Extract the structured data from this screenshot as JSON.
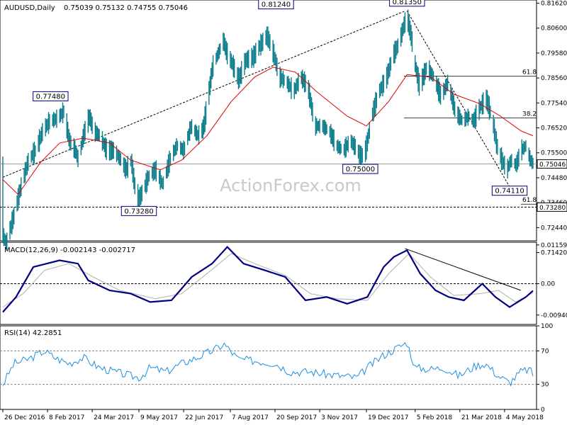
{
  "chart_data": [
    {
      "type": "candlestick",
      "title": "AUDUSD,Daily",
      "ohlc_readout": "0.75039 0.75132 0.74755 0.75046",
      "last_price": 0.75046,
      "last_price_label": "0.75046",
      "ylim": [
        0.719,
        0.8175
      ],
      "y_ticks": [
        {
          "value": 0.8162,
          "label": "0.81620"
        },
        {
          "value": 0.806,
          "label": "0.80600"
        },
        {
          "value": 0.7958,
          "label": "0.79580"
        },
        {
          "value": 0.7856,
          "label": "0.78560"
        },
        {
          "value": 0.7754,
          "label": "0.77540"
        },
        {
          "value": 0.7652,
          "label": "0.76520"
        },
        {
          "value": 0.755,
          "label": "0.75500"
        },
        {
          "value": 0.7448,
          "label": "0.74480"
        },
        {
          "value": 0.7346,
          "label": "0.73460"
        },
        {
          "value": 0.7244,
          "label": "0.72440"
        },
        {
          "value": 0.7142,
          "label": "0.71420"
        }
      ],
      "price_path": [
        [
          "2016-12-26",
          0.721
        ],
        [
          "2016-12-29",
          0.718
        ],
        [
          "2017-01-06",
          0.73
        ],
        [
          "2017-01-13",
          0.742
        ],
        [
          "2017-01-20",
          0.752
        ],
        [
          "2017-01-27",
          0.756
        ],
        [
          "2017-02-03",
          0.764
        ],
        [
          "2017-02-10",
          0.768
        ],
        [
          "2017-02-17",
          0.769
        ],
        [
          "2017-02-24",
          0.772
        ],
        [
          "2017-03-01",
          0.76
        ],
        [
          "2017-03-07",
          0.756
        ],
        [
          "2017-03-10",
          0.752
        ],
        [
          "2017-03-15",
          0.762
        ],
        [
          "2017-03-21",
          0.77
        ],
        [
          "2017-03-25",
          0.764
        ],
        [
          "2017-03-31",
          0.762
        ],
        [
          "2017-04-07",
          0.756
        ],
        [
          "2017-04-14",
          0.756
        ],
        [
          "2017-04-21",
          0.752
        ],
        [
          "2017-04-26",
          0.748
        ],
        [
          "2017-05-01",
          0.752
        ],
        [
          "2017-05-05",
          0.74
        ],
        [
          "2017-05-09",
          0.736
        ],
        [
          "2017-05-13",
          0.74
        ],
        [
          "2017-05-19",
          0.746
        ],
        [
          "2017-05-25",
          0.748
        ],
        [
          "2017-06-01",
          0.742
        ],
        [
          "2017-06-08",
          0.752
        ],
        [
          "2017-06-15",
          0.758
        ],
        [
          "2017-06-22",
          0.756
        ],
        [
          "2017-06-29",
          0.766
        ],
        [
          "2017-07-06",
          0.762
        ],
        [
          "2017-07-11",
          0.765
        ],
        [
          "2017-07-15",
          0.775
        ],
        [
          "2017-07-20",
          0.79
        ],
        [
          "2017-07-25",
          0.795
        ],
        [
          "2017-07-31",
          0.801
        ],
        [
          "2017-08-03",
          0.796
        ],
        [
          "2017-08-08",
          0.792
        ],
        [
          "2017-08-15",
          0.785
        ],
        [
          "2017-08-22",
          0.793
        ],
        [
          "2017-08-29",
          0.794
        ],
        [
          "2017-09-05",
          0.799
        ],
        [
          "2017-09-12",
          0.803
        ],
        [
          "2017-09-18",
          0.796
        ],
        [
          "2017-09-24",
          0.786
        ],
        [
          "2017-10-01",
          0.784
        ],
        [
          "2017-10-08",
          0.78
        ],
        [
          "2017-10-15",
          0.786
        ],
        [
          "2017-10-22",
          0.782
        ],
        [
          "2017-10-29",
          0.766
        ],
        [
          "2017-11-05",
          0.766
        ],
        [
          "2017-11-12",
          0.764
        ],
        [
          "2017-11-19",
          0.758
        ],
        [
          "2017-11-26",
          0.756
        ],
        [
          "2017-12-03",
          0.76
        ],
        [
          "2017-12-10",
          0.756
        ],
        [
          "2017-12-13",
          0.753
        ],
        [
          "2017-12-18",
          0.756
        ],
        [
          "2017-12-24",
          0.77
        ],
        [
          "2017-12-31",
          0.78
        ],
        [
          "2018-01-07",
          0.785
        ],
        [
          "2018-01-14",
          0.795
        ],
        [
          "2018-01-20",
          0.8
        ],
        [
          "2018-01-25",
          0.808
        ],
        [
          "2018-01-28",
          0.81
        ],
        [
          "2018-02-01",
          0.802
        ],
        [
          "2018-02-05",
          0.79
        ],
        [
          "2018-02-09",
          0.782
        ],
        [
          "2018-02-16",
          0.79
        ],
        [
          "2018-02-23",
          0.786
        ],
        [
          "2018-03-02",
          0.778
        ],
        [
          "2018-03-09",
          0.784
        ],
        [
          "2018-03-16",
          0.772
        ],
        [
          "2018-03-23",
          0.768
        ],
        [
          "2018-03-30",
          0.77
        ],
        [
          "2018-04-03",
          0.768
        ],
        [
          "2018-04-10",
          0.774
        ],
        [
          "2018-04-16",
          0.777
        ],
        [
          "2018-04-22",
          0.768
        ],
        [
          "2018-04-26",
          0.758
        ],
        [
          "2018-05-01",
          0.752
        ],
        [
          "2018-05-06",
          0.748
        ],
        [
          "2018-05-10",
          0.752
        ],
        [
          "2018-05-15",
          0.75
        ],
        [
          "2018-05-20",
          0.756
        ],
        [
          "2018-05-25",
          0.758
        ],
        [
          "2018-05-29",
          0.752
        ],
        [
          "2018-06-01",
          0.7505
        ]
      ],
      "moving_average": [
        [
          "2016-12-26",
          0.744
        ],
        [
          "2017-01-10",
          0.738
        ],
        [
          "2017-02-01",
          0.751
        ],
        [
          "2017-02-20",
          0.759
        ],
        [
          "2017-03-15",
          0.761
        ],
        [
          "2017-04-10",
          0.759
        ],
        [
          "2017-05-01",
          0.752
        ],
        [
          "2017-05-30",
          0.748
        ],
        [
          "2017-06-20",
          0.752
        ],
        [
          "2017-07-15",
          0.762
        ],
        [
          "2017-08-08",
          0.776
        ],
        [
          "2017-08-31",
          0.786
        ],
        [
          "2017-09-18",
          0.79
        ],
        [
          "2017-10-10",
          0.788
        ],
        [
          "2017-10-31",
          0.78
        ],
        [
          "2017-11-30",
          0.77
        ],
        [
          "2017-12-19",
          0.766
        ],
        [
          "2018-01-10",
          0.776
        ],
        [
          "2018-01-28",
          0.787
        ],
        [
          "2018-02-20",
          0.786
        ],
        [
          "2018-03-15",
          0.779
        ],
        [
          "2018-04-10",
          0.775
        ],
        [
          "2018-04-30",
          0.77
        ],
        [
          "2018-05-20",
          0.764
        ],
        [
          "2018-06-01",
          0.762
        ]
      ],
      "annotations": [
        {
          "label": "0.77480",
          "value": 0.7748,
          "date": "2017-02-11"
        },
        {
          "label": "0.73280",
          "value": 0.7328,
          "date": "2017-05-09"
        },
        {
          "label": "0.81240",
          "value": 0.8124,
          "date": "2017-09-21"
        },
        {
          "label": "0.75000",
          "value": 0.75,
          "date": "2017-12-13"
        },
        {
          "label": "0.81350",
          "value": 0.8135,
          "date": "2018-01-28"
        },
        {
          "label": "0.74110",
          "value": 0.7411,
          "date": "2018-05-09"
        }
      ],
      "horizontal_levels": [
        {
          "value": 0.7328,
          "label": "0.73280",
          "style": "dashed"
        }
      ],
      "fib_levels": [
        {
          "label": "61.8",
          "value": 0.7864,
          "from": "2018-01-25"
        },
        {
          "label": "38.2",
          "value": 0.7693,
          "from": "2018-01-25"
        },
        {
          "label": "61.8",
          "value": 0.734,
          "from": "2018-05-20"
        }
      ],
      "trendlines": [
        {
          "style": "dashed",
          "from": [
            "2016-12-26",
            0.745
          ],
          "to": [
            "2018-01-26",
            0.813
          ]
        },
        {
          "style": "dashed",
          "from": [
            "2018-01-28",
            0.813
          ],
          "to": [
            "2018-05-09",
            0.7411
          ]
        }
      ],
      "watermark": "ActionForex.com"
    },
    {
      "type": "line",
      "title": "MACD(12,26,9) -0.002143 -0.002717",
      "ylim": [
        -0.0122,
        0.0124
      ],
      "y_ticks": [
        {
          "value": 0.01159,
          "label": "0.01159"
        },
        {
          "value": 0.0,
          "label": "0.00"
        },
        {
          "value": -0.0094,
          "label": "-0.009408"
        }
      ],
      "zero_line": true,
      "series": [
        {
          "values": [
            [
              "2016-12-26",
              -0.0085
            ],
            [
              "2017-01-08",
              -0.004
            ],
            [
              "2017-01-25",
              0.005
            ],
            [
              "2017-02-20",
              0.007
            ],
            [
              "2017-03-10",
              0.006
            ],
            [
              "2017-03-20",
              0.001
            ],
            [
              "2017-04-10",
              -0.002
            ],
            [
              "2017-05-01",
              -0.003
            ],
            [
              "2017-05-20",
              -0.0055
            ],
            [
              "2017-06-10",
              -0.005
            ],
            [
              "2017-06-30",
              0.002
            ],
            [
              "2017-07-20",
              0.006
            ],
            [
              "2017-08-04",
              0.011
            ],
            [
              "2017-08-20",
              0.006
            ],
            [
              "2017-09-10",
              0.004
            ],
            [
              "2017-09-30",
              0.002
            ],
            [
              "2017-10-20",
              -0.005
            ],
            [
              "2017-11-10",
              -0.004
            ],
            [
              "2017-11-30",
              -0.006
            ],
            [
              "2017-12-20",
              -0.004
            ],
            [
              "2018-01-05",
              0.005
            ],
            [
              "2018-01-15",
              0.008
            ],
            [
              "2018-01-28",
              0.01
            ],
            [
              "2018-02-10",
              0.003
            ],
            [
              "2018-02-25",
              -0.002
            ],
            [
              "2018-03-10",
              -0.004
            ],
            [
              "2018-03-25",
              -0.005
            ],
            [
              "2018-04-12",
              0.0
            ],
            [
              "2018-04-25",
              -0.004
            ],
            [
              "2018-05-09",
              -0.007
            ],
            [
              "2018-05-25",
              -0.004
            ],
            [
              "2018-06-01",
              -0.0021
            ]
          ]
        },
        {
          "values": [
            [
              "2016-12-26",
              -0.007
            ],
            [
              "2017-01-15",
              -0.003
            ],
            [
              "2017-02-05",
              0.004
            ],
            [
              "2017-03-01",
              0.006
            ],
            [
              "2017-03-25",
              0.002
            ],
            [
              "2017-04-20",
              -0.002
            ],
            [
              "2017-05-25",
              -0.0045
            ],
            [
              "2017-06-20",
              -0.003
            ],
            [
              "2017-07-15",
              0.003
            ],
            [
              "2017-08-08",
              0.009
            ],
            [
              "2017-08-31",
              0.006
            ],
            [
              "2017-09-30",
              0.0025
            ],
            [
              "2017-10-25",
              -0.003
            ],
            [
              "2017-11-20",
              -0.0045
            ],
            [
              "2017-12-20",
              -0.005
            ],
            [
              "2018-01-10",
              0.003
            ],
            [
              "2018-01-30",
              0.009
            ],
            [
              "2018-02-20",
              0.002
            ],
            [
              "2018-03-15",
              -0.0035
            ],
            [
              "2018-04-10",
              -0.003
            ],
            [
              "2018-04-28",
              -0.002
            ],
            [
              "2018-05-15",
              -0.0055
            ],
            [
              "2018-06-01",
              -0.0027
            ]
          ]
        }
      ],
      "trendlines": [
        {
          "from": [
            "2018-01-26",
            0.0105
          ],
          "to": [
            "2018-05-20",
            -0.002
          ]
        }
      ]
    },
    {
      "type": "line",
      "title": "RSI(14) 42.2851",
      "ylim": [
        0,
        100
      ],
      "y_ticks": [
        {
          "value": 100,
          "label": "100"
        },
        {
          "value": 70,
          "label": "70"
        },
        {
          "value": 30,
          "label": "30"
        },
        {
          "value": 0,
          "label": "0"
        }
      ],
      "levels": [
        70,
        30
      ],
      "series": [
        {
          "values": [
            [
              "2016-12-26",
              30
            ],
            [
              "2017-01-06",
              55
            ],
            [
              "2017-01-20",
              60
            ],
            [
              "2017-02-05",
              70
            ],
            [
              "2017-02-15",
              62
            ],
            [
              "2017-03-01",
              55
            ],
            [
              "2017-03-15",
              62
            ],
            [
              "2017-03-31",
              50
            ],
            [
              "2017-04-15",
              45
            ],
            [
              "2017-05-01",
              40
            ],
            [
              "2017-05-10",
              38
            ],
            [
              "2017-05-20",
              50
            ],
            [
              "2017-06-05",
              45
            ],
            [
              "2017-06-20",
              55
            ],
            [
              "2017-07-05",
              62
            ],
            [
              "2017-07-20",
              70
            ],
            [
              "2017-08-01",
              78
            ],
            [
              "2017-08-15",
              60
            ],
            [
              "2017-09-01",
              58
            ],
            [
              "2017-09-20",
              55
            ],
            [
              "2017-10-05",
              45
            ],
            [
              "2017-10-25",
              45
            ],
            [
              "2017-11-10",
              42
            ],
            [
              "2017-11-25",
              40
            ],
            [
              "2017-12-10",
              38
            ],
            [
              "2017-12-20",
              50
            ],
            [
              "2018-01-05",
              65
            ],
            [
              "2018-01-20",
              75
            ],
            [
              "2018-01-28",
              80
            ],
            [
              "2018-02-05",
              50
            ],
            [
              "2018-02-20",
              48
            ],
            [
              "2018-03-05",
              50
            ],
            [
              "2018-03-20",
              40
            ],
            [
              "2018-04-05",
              52
            ],
            [
              "2018-04-15",
              55
            ],
            [
              "2018-04-28",
              40
            ],
            [
              "2018-05-09",
              32
            ],
            [
              "2018-05-20",
              45
            ],
            [
              "2018-05-28",
              48
            ],
            [
              "2018-06-01",
              42
            ]
          ]
        }
      ]
    }
  ],
  "x_axis": {
    "start": "2016-12-26",
    "end": "2018-06-01",
    "ticks": [
      {
        "date": "2016-12-26",
        "label": "26 Dec 2016"
      },
      {
        "date": "2017-02-08",
        "label": "8 Feb 2017"
      },
      {
        "date": "2017-03-24",
        "label": "24 Mar 2017"
      },
      {
        "date": "2017-05-09",
        "label": "9 May 2017"
      },
      {
        "date": "2017-06-22",
        "label": "22 Jun 2017"
      },
      {
        "date": "2017-08-07",
        "label": "7 Aug 2017"
      },
      {
        "date": "2017-09-20",
        "label": "20 Sep 2017"
      },
      {
        "date": "2017-11-03",
        "label": "3 Nov 2017"
      },
      {
        "date": "2017-12-19",
        "label": "19 Dec 2017"
      },
      {
        "date": "2018-02-05",
        "label": "5 Feb 2018"
      },
      {
        "date": "2018-03-21",
        "label": "21 Mar 2018"
      },
      {
        "date": "2018-05-04",
        "label": "4 May 2018"
      }
    ]
  },
  "colors": {
    "price": "#0c7c8c",
    "ma": "#e00000",
    "macd": "#000080",
    "signal": "#b0b0b0",
    "rsi": "#1e8fe0",
    "grid": "#000000",
    "label_border": "#000080"
  }
}
